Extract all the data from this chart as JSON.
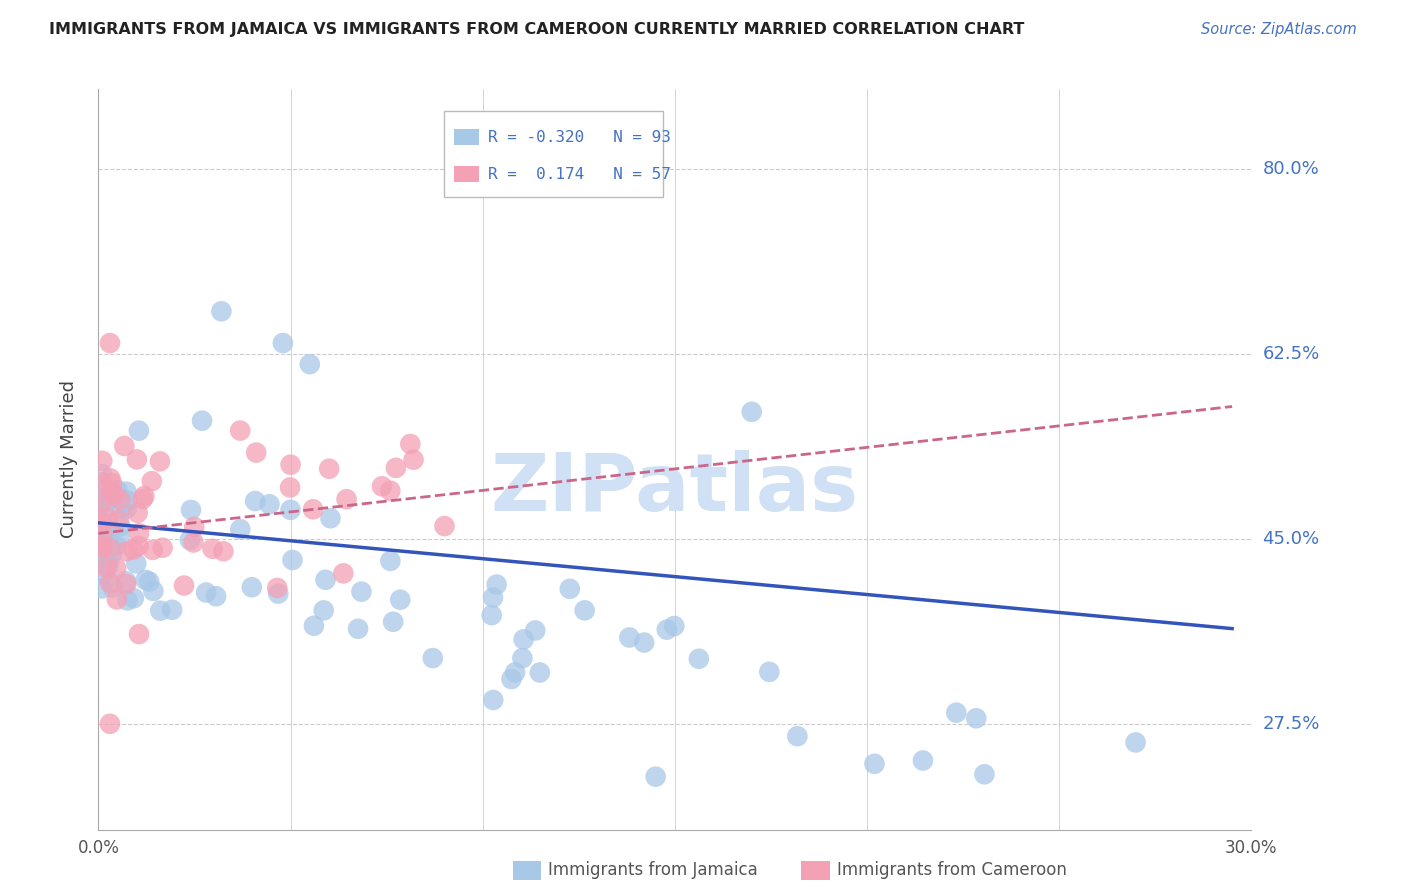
{
  "title": "IMMIGRANTS FROM JAMAICA VS IMMIGRANTS FROM CAMEROON CURRENTLY MARRIED CORRELATION CHART",
  "source": "Source: ZipAtlas.com",
  "ylabel": "Currently Married",
  "xlim": [
    0.0,
    0.3
  ],
  "ylim": [
    0.175,
    0.875
  ],
  "yticks": [
    0.275,
    0.45,
    0.625,
    0.8
  ],
  "ytick_labels": [
    "27.5%",
    "45.0%",
    "62.5%",
    "80.0%"
  ],
  "xticks": [
    0.0,
    0.05,
    0.1,
    0.15,
    0.2,
    0.25,
    0.3
  ],
  "xtick_labels": [
    "0.0%",
    "",
    "",
    "",
    "",
    "",
    "30.0%"
  ],
  "color_jamaica": "#A8C8E8",
  "color_cameroon": "#F4A0B5",
  "color_trendline_jamaica": "#3355BB",
  "color_trendline_cameroon": "#CC6688",
  "watermark": "ZIPatlas",
  "watermark_color": "#D0E0F5",
  "background_color": "#ffffff"
}
